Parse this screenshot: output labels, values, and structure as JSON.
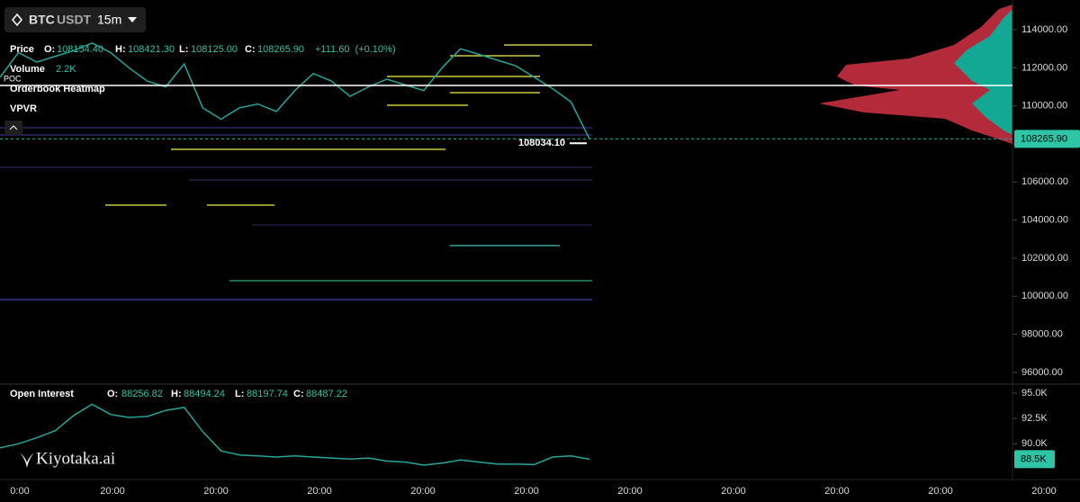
{
  "toolbar": {
    "symbol_base": "BTC",
    "symbol_quote": "USDT",
    "interval": "15m"
  },
  "legend": {
    "price": {
      "label": "Price",
      "o_key": "O:",
      "o": "108154.40",
      "h_key": "H:",
      "h": "108421.30",
      "l_key": "L:",
      "l": "108125.00",
      "c_key": "C:",
      "c": "108265.90",
      "change": "+111.60  (+0.10%)"
    },
    "volume": {
      "label": "Volume",
      "value": "2.2K"
    },
    "heatmap": "Orderbook Heatmap",
    "vpvr": "VPVR"
  },
  "time_axis": {
    "ticks": [
      "0:00",
      "20:00",
      "20:00",
      "20:00",
      "20:00",
      "20:00",
      "20:00",
      "20:00",
      "20:00",
      "20:00",
      "20:00"
    ]
  },
  "watermark": "Kiyotaka.ai",
  "chart_data": [
    {
      "type": "line",
      "color": "#26a69a",
      "values": [
        111500,
        112800,
        112300,
        112600,
        112900,
        113300,
        112800,
        112000,
        111300,
        111000,
        112200,
        109900,
        109300,
        109900,
        110100,
        109700,
        110800,
        111700,
        111300,
        110500,
        111000,
        111400,
        111100,
        110800,
        112000,
        113000,
        112700,
        112400,
        112100,
        111500,
        110900,
        110200,
        108265.9
      ],
      "ylim": [
        95480,
        115560
      ],
      "yticks": [
        {
          "value": 96000,
          "label": "96000.00"
        },
        {
          "value": 98000,
          "label": "98000.00"
        },
        {
          "value": 100000,
          "label": "100000.00"
        },
        {
          "value": 102000,
          "label": "102000.00"
        },
        {
          "value": 104000,
          "label": "104000.00"
        },
        {
          "value": 106000,
          "label": "106000.00"
        },
        {
          "value": 108000,
          "label": "108000.00"
        },
        {
          "value": 110000,
          "label": "110000.00"
        },
        {
          "value": 112000,
          "label": "112000.00"
        },
        {
          "value": 114000,
          "label": "114000.00"
        }
      ],
      "poc": {
        "label": "POC",
        "value": 111070
      },
      "last_price": {
        "value": 108265.9,
        "label": "108265.90"
      },
      "marker_price": {
        "value": 108034.1,
        "label": "108034.10"
      }
    },
    {
      "type": "line",
      "title": "Open Interest",
      "color": "#26a69a",
      "legend": {
        "o_key": "O:",
        "o": "88256.82",
        "h_key": "H:",
        "h": "88494.24",
        "l_key": "L:",
        "l": "88197.74",
        "c_key": "C:",
        "c": "88487.22"
      },
      "values": [
        89600,
        90000,
        90600,
        91300,
        92800,
        93900,
        92900,
        92600,
        92700,
        93300,
        93600,
        91200,
        89300,
        88900,
        88800,
        88700,
        88800,
        88700,
        88600,
        88500,
        88600,
        88300,
        88200,
        87900,
        88100,
        88400,
        88200,
        88000,
        88000,
        87950,
        88700,
        88800,
        88487.22
      ],
      "ylim": [
        86300,
        95800
      ],
      "yticks": [
        {
          "value": 95000,
          "label": "95.0K"
        },
        {
          "value": 92500,
          "label": "92.5K"
        },
        {
          "value": 90000,
          "label": "90.0K"
        }
      ],
      "last": {
        "value": 88487.22,
        "label": "88.5K"
      }
    }
  ]
}
